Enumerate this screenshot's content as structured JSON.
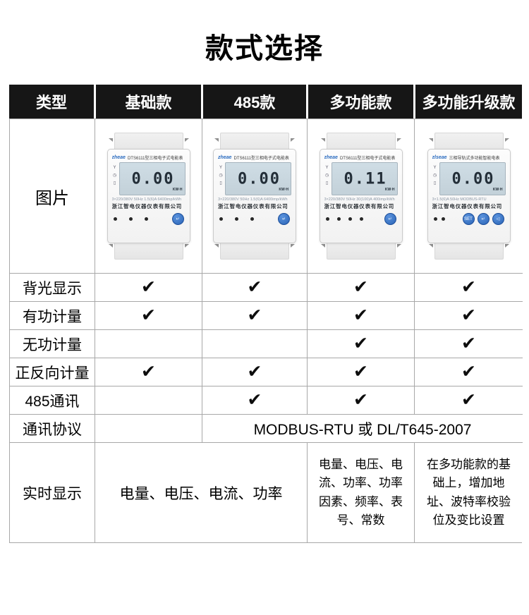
{
  "page_title": "款式选择",
  "colors": {
    "header_bg": "#161616",
    "grid_line": "#a8a8a8",
    "check": "#0d0d0d",
    "lcd_bg": "#c9d7df",
    "brand_blue": "#2b6cc0",
    "button_blue": "#2e6fc0"
  },
  "table": {
    "columns": [
      "类型",
      "基础款",
      "485款",
      "多功能款",
      "多功能升级款"
    ],
    "picture_row_label": "图片",
    "check_glyph": "✔",
    "feature_rows": [
      {
        "label": "背光显示",
        "checks": [
          true,
          true,
          true,
          true
        ]
      },
      {
        "label": "有功计量",
        "checks": [
          true,
          true,
          true,
          true
        ]
      },
      {
        "label": "无功计量",
        "checks": [
          false,
          false,
          true,
          true
        ]
      },
      {
        "label": "正反向计量",
        "checks": [
          true,
          true,
          true,
          true
        ]
      },
      {
        "label": "485通讯",
        "checks": [
          false,
          true,
          true,
          true
        ]
      }
    ],
    "protocol_row": {
      "label": "通讯协议",
      "basic_value": "",
      "shared_value": "MODBUS-RTU 或 DL/T645-2007"
    },
    "realtime_row": {
      "label": "实时显示",
      "basic_and_485": "电量、电压、电流、功率",
      "multifunction": "电量、电压、电流、功率、功率因素、频率、表号、常数",
      "upgrade": "在多功能款的基础上，增加地址、波特率校验位及变比设置"
    }
  },
  "meter_side_icons": [
    "Y",
    "◷",
    "▯"
  ],
  "meters": [
    {
      "variant": "basic",
      "brand": "zheae",
      "model_title": "DTS6111型三相电子式电能表",
      "lcd_value": "0.00",
      "lcd_unit": "KW·H",
      "spec": "3×220/380V 50Hz 1.5(6)A 6400imp/kWh",
      "company": "浙江智电仪器仪表有限公司",
      "indicator_dots": 3,
      "buttons": [
        "↵"
      ]
    },
    {
      "variant": "485",
      "brand": "zheae",
      "model_title": "DTS6111型三相电子式电能表",
      "lcd_value": "0.00",
      "lcd_unit": "KW·H",
      "spec": "3×220/380V 50Hz 1.5(6)A 6400imp/kWh",
      "company": "浙江智电仪器仪表有限公司",
      "indicator_dots": 3,
      "buttons": [
        "↵"
      ]
    },
    {
      "variant": "multifunction",
      "brand": "zheae",
      "model_title": "DTS6111型三相电子式电能表",
      "lcd_value": "0.11",
      "lcd_unit": "KW·H",
      "spec": "3×220/380V 50Hz 30(100)A 400imp/kWh",
      "company": "浙江智电仪器仪表有限公司",
      "indicator_dots": 4,
      "buttons": [
        "↵"
      ]
    },
    {
      "variant": "multifunction-upgrade",
      "brand": "zlseae",
      "model_title": "三相导轨式多功能智能电表",
      "lcd_value": "0.00",
      "lcd_unit": "KW·H",
      "spec": "3×1.5(6)A 50Hz MODBUS-RTU",
      "company": "浙江智电仪器仪表有限公司",
      "indicator_dots": 2,
      "buttons": [
        "SET",
        "↵",
        "◁"
      ]
    }
  ]
}
